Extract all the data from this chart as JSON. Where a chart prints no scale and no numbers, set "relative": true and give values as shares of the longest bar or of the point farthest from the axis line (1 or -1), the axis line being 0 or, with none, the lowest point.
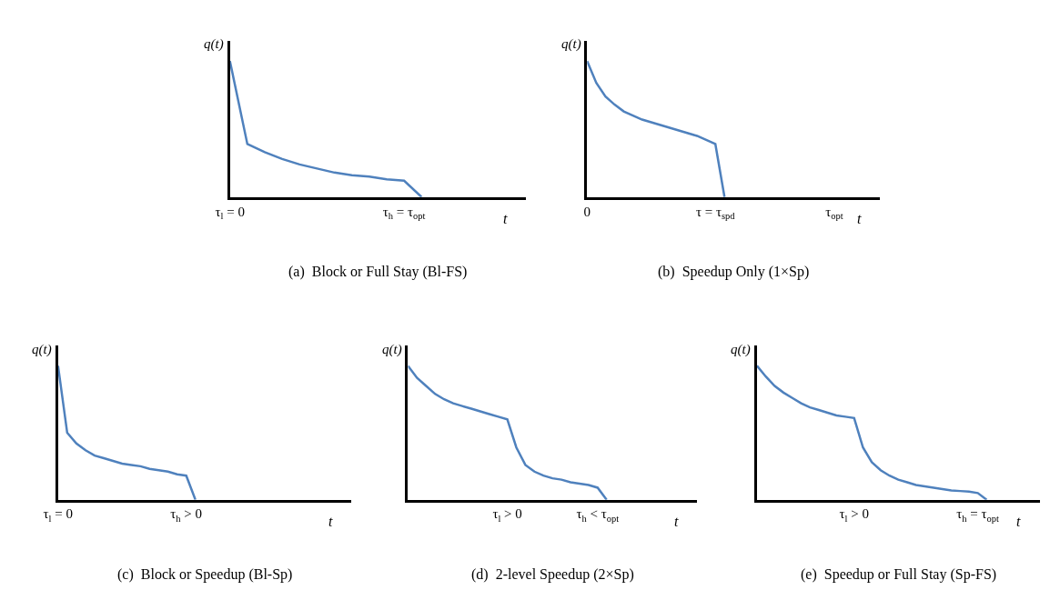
{
  "chart_data": [
    {
      "type": "line",
      "title": "(a)  Block or Full Stay (Bl-FS)",
      "xlabel": "t",
      "ylabel": "q(t)",
      "relative": true,
      "marker": "none",
      "line_style": "solid",
      "categories": [
        "τ$_{l}$ = 0",
        null,
        null,
        null,
        null,
        null,
        null,
        null,
        null,
        null,
        "τ$_{h}$ = τ$_{opt}$",
        null,
        null,
        null,
        null,
        null,
        null,
        null
      ],
      "series": [
        {
          "color": "#4f81bd",
          "values": [
            1.0,
            0.39,
            0.33,
            0.28,
            0.24,
            0.21,
            0.18,
            0.16,
            0.15,
            0.13,
            0.12,
            0,
            null,
            null,
            null,
            null,
            null,
            null
          ]
        }
      ]
    },
    {
      "type": "line",
      "title": "(b)  Speedup Only (1×Sp)",
      "xlabel": "t",
      "ylabel": "q(t)",
      "relative": true,
      "marker": "none",
      "line_style": "solid",
      "categories": [
        "0",
        null,
        null,
        null,
        null,
        null,
        null,
        null,
        null,
        null,
        null,
        null,
        null,
        null,
        "τ = τ$_{spd}$",
        null,
        null,
        null,
        null,
        null,
        null,
        null,
        null,
        null,
        null,
        null,
        null,
        "τ$_{opt}$",
        null,
        null,
        null,
        null,
        null
      ],
      "series": [
        {
          "color": "#4f81bd",
          "values": [
            1.0,
            0.84,
            0.74,
            0.68,
            0.63,
            0.6,
            0.57,
            0.55,
            0.53,
            0.51,
            0.49,
            0.47,
            0.45,
            0.42,
            0.39,
            0,
            null,
            null,
            null,
            null,
            null,
            null,
            null,
            null,
            null,
            null,
            null,
            null,
            null,
            null,
            null,
            null,
            null
          ]
        }
      ]
    },
    {
      "type": "line",
      "title": "(c)  Block or Speedup (Bl-Sp)",
      "xlabel": "t",
      "ylabel": "q(t)",
      "relative": true,
      "marker": "none",
      "line_style": "solid",
      "categories": [
        "τ$_{l}$ = 0",
        null,
        null,
        null,
        null,
        null,
        null,
        null,
        null,
        null,
        null,
        null,
        null,
        null,
        "τ$_{h}$ > 0",
        null,
        null,
        null,
        null,
        null,
        null,
        null,
        null,
        null,
        null,
        null,
        null,
        null,
        null,
        null,
        null,
        null,
        null
      ],
      "series": [
        {
          "color": "#4f81bd",
          "values": [
            1.0,
            0.5,
            0.42,
            0.37,
            0.33,
            0.31,
            0.29,
            0.27,
            0.26,
            0.25,
            0.23,
            0.22,
            0.21,
            0.19,
            0.18,
            0,
            null,
            null,
            null,
            null,
            null,
            null,
            null,
            null,
            null,
            null,
            null,
            null,
            null,
            null,
            null,
            null,
            null
          ]
        }
      ]
    },
    {
      "type": "line",
      "title": "(d)  2-level Speedup (2×Sp)",
      "xlabel": "t",
      "ylabel": "q(t)",
      "relative": true,
      "marker": "none",
      "line_style": "solid",
      "categories": [
        null,
        null,
        null,
        null,
        null,
        null,
        null,
        null,
        null,
        null,
        null,
        "τ$_{l}$ > 0",
        null,
        null,
        null,
        null,
        null,
        null,
        null,
        null,
        null,
        "τ$_{h}$ < τ$_{opt}$",
        null,
        null,
        null,
        null,
        null,
        null,
        null,
        null,
        null,
        null,
        null
      ],
      "series": [
        {
          "color": "#4f81bd",
          "values": [
            1.0,
            0.91,
            0.85,
            0.79,
            0.75,
            0.72,
            0.7,
            0.68,
            0.66,
            0.64,
            0.62,
            0.6,
            0.39,
            0.26,
            0.21,
            0.18,
            0.16,
            0.15,
            0.13,
            0.12,
            0.11,
            0.09,
            0,
            null,
            null,
            null,
            null,
            null,
            null,
            null,
            null,
            null,
            null
          ]
        }
      ]
    },
    {
      "type": "line",
      "title": "(e)  Speedup or Full Stay (Sp-FS)",
      "xlabel": "t",
      "ylabel": "q(t)",
      "relative": true,
      "marker": "none",
      "line_style": "solid",
      "categories": [
        null,
        null,
        null,
        null,
        null,
        null,
        null,
        null,
        null,
        null,
        null,
        "τ$_{l}$ > 0",
        null,
        null,
        null,
        null,
        null,
        null,
        null,
        null,
        null,
        null,
        null,
        null,
        null,
        "τ$_{h}$ = τ$_{opt}$",
        null,
        null,
        null,
        null,
        null,
        null,
        null
      ],
      "series": [
        {
          "color": "#4f81bd",
          "values": [
            1.0,
            0.92,
            0.85,
            0.8,
            0.76,
            0.72,
            0.69,
            0.67,
            0.65,
            0.63,
            0.62,
            0.61,
            0.39,
            0.28,
            0.22,
            0.18,
            0.15,
            0.13,
            0.11,
            0.1,
            0.09,
            0.08,
            0.07,
            0.065,
            0.06,
            0.05,
            0,
            null,
            null,
            null,
            null,
            null,
            null
          ]
        }
      ]
    }
  ]
}
